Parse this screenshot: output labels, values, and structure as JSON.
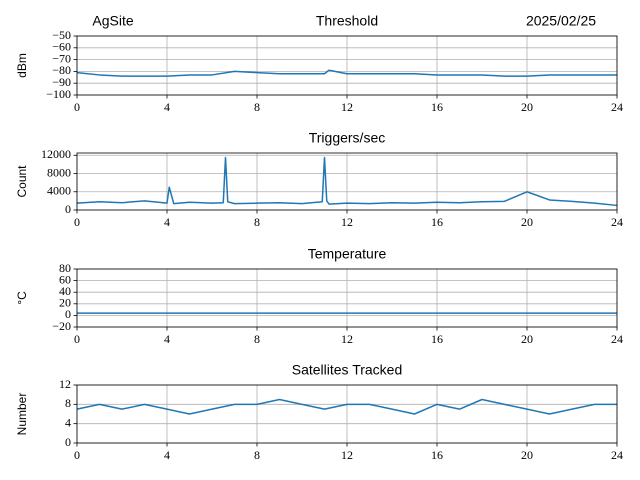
{
  "header": {
    "site": "AgSite",
    "date": "2025/02/25"
  },
  "chart_data": [
    {
      "type": "line",
      "title": "Threshold",
      "y_label": "dBm",
      "grid": true,
      "x": [
        0,
        1,
        2,
        3,
        4,
        5,
        6,
        7,
        8,
        9,
        10,
        11,
        11.2,
        12,
        13,
        14,
        15,
        16,
        17,
        18,
        19,
        20,
        21,
        22,
        23,
        24
      ],
      "series": [
        {
          "name": "Threshold",
          "color": "#1f77b4",
          "values": [
            -81,
            -83,
            -84,
            -84,
            -84,
            -83,
            -83,
            -80,
            -81,
            -82,
            -82,
            -82,
            -79,
            -82,
            -82,
            -82,
            -82,
            -83,
            -83,
            -83,
            -84,
            -84,
            -83,
            -83,
            -83,
            -83
          ]
        }
      ],
      "xlim": [
        0,
        24
      ],
      "xticks": [
        0,
        4,
        8,
        12,
        16,
        20,
        24
      ],
      "ylim": [
        -100,
        -50
      ],
      "yticks": [
        {
          "value": -100,
          "label": "−100"
        },
        {
          "value": -90,
          "label": "−90"
        },
        {
          "value": -80,
          "label": "−80"
        },
        {
          "value": -70,
          "label": "−70"
        },
        {
          "value": -60,
          "label": "−60"
        },
        {
          "value": -50,
          "label": "−50"
        }
      ]
    },
    {
      "type": "line",
      "title": "Triggers/sec",
      "y_label": "Count",
      "grid": true,
      "x": [
        0,
        1,
        2,
        3,
        4,
        4.1,
        4.3,
        5,
        6,
        6.5,
        6.6,
        6.7,
        7,
        8,
        9,
        10,
        10.9,
        11,
        11.1,
        11.2,
        12,
        13,
        14,
        15,
        16,
        17,
        18,
        19,
        20,
        21,
        22,
        23,
        24
      ],
      "series": [
        {
          "name": "Triggers/sec",
          "color": "#1f77b4",
          "values": [
            1500,
            1800,
            1600,
            2000,
            1500,
            5000,
            1400,
            1700,
            1500,
            1600,
            11500,
            1800,
            1400,
            1500,
            1600,
            1400,
            1800,
            11500,
            2000,
            1300,
            1500,
            1400,
            1600,
            1500,
            1700,
            1600,
            1800,
            1900,
            4000,
            2200,
            1900,
            1500,
            1000
          ]
        }
      ],
      "xlim": [
        0,
        24
      ],
      "xticks": [
        0,
        4,
        8,
        12,
        16,
        20,
        24
      ],
      "ylim": [
        0,
        12500
      ],
      "yticks": [
        0,
        4000,
        8000,
        12000
      ]
    },
    {
      "type": "line",
      "title": "Temperature",
      "y_label": "°C",
      "grid": true,
      "x": [
        0,
        2,
        4,
        6,
        8,
        10,
        12,
        14,
        16,
        18,
        20,
        22,
        24
      ],
      "series": [
        {
          "name": "Temperature",
          "color": "#1f77b4",
          "values": [
            4,
            4,
            4,
            4,
            4,
            4,
            4,
            4,
            4,
            4,
            4,
            4,
            4
          ]
        }
      ],
      "xlim": [
        0,
        24
      ],
      "xticks": [
        0,
        4,
        8,
        12,
        16,
        20,
        24
      ],
      "ylim": [
        -20,
        80
      ],
      "yticks": [
        {
          "value": -20,
          "label": "−20"
        },
        0,
        20,
        40,
        60,
        80
      ]
    },
    {
      "type": "line",
      "title": "Satellites Tracked",
      "y_label": "Number",
      "grid": true,
      "x": [
        0,
        1,
        2,
        3,
        4,
        5,
        6,
        7,
        8,
        9,
        10,
        11,
        12,
        13,
        14,
        15,
        16,
        17,
        18,
        19,
        20,
        21,
        22,
        23,
        24
      ],
      "series": [
        {
          "name": "Satellites Tracked",
          "color": "#1f77b4",
          "values": [
            7,
            8,
            7,
            8,
            7,
            6,
            7,
            8,
            8,
            9,
            8,
            7,
            8,
            8,
            7,
            6,
            8,
            7,
            9,
            8,
            7,
            6,
            7,
            8,
            8
          ]
        }
      ],
      "xlim": [
        0,
        24
      ],
      "xticks": [
        0,
        4,
        8,
        12,
        16,
        20,
        24
      ],
      "ylim": [
        0,
        12
      ],
      "yticks": [
        0,
        4,
        8,
        12
      ]
    }
  ]
}
